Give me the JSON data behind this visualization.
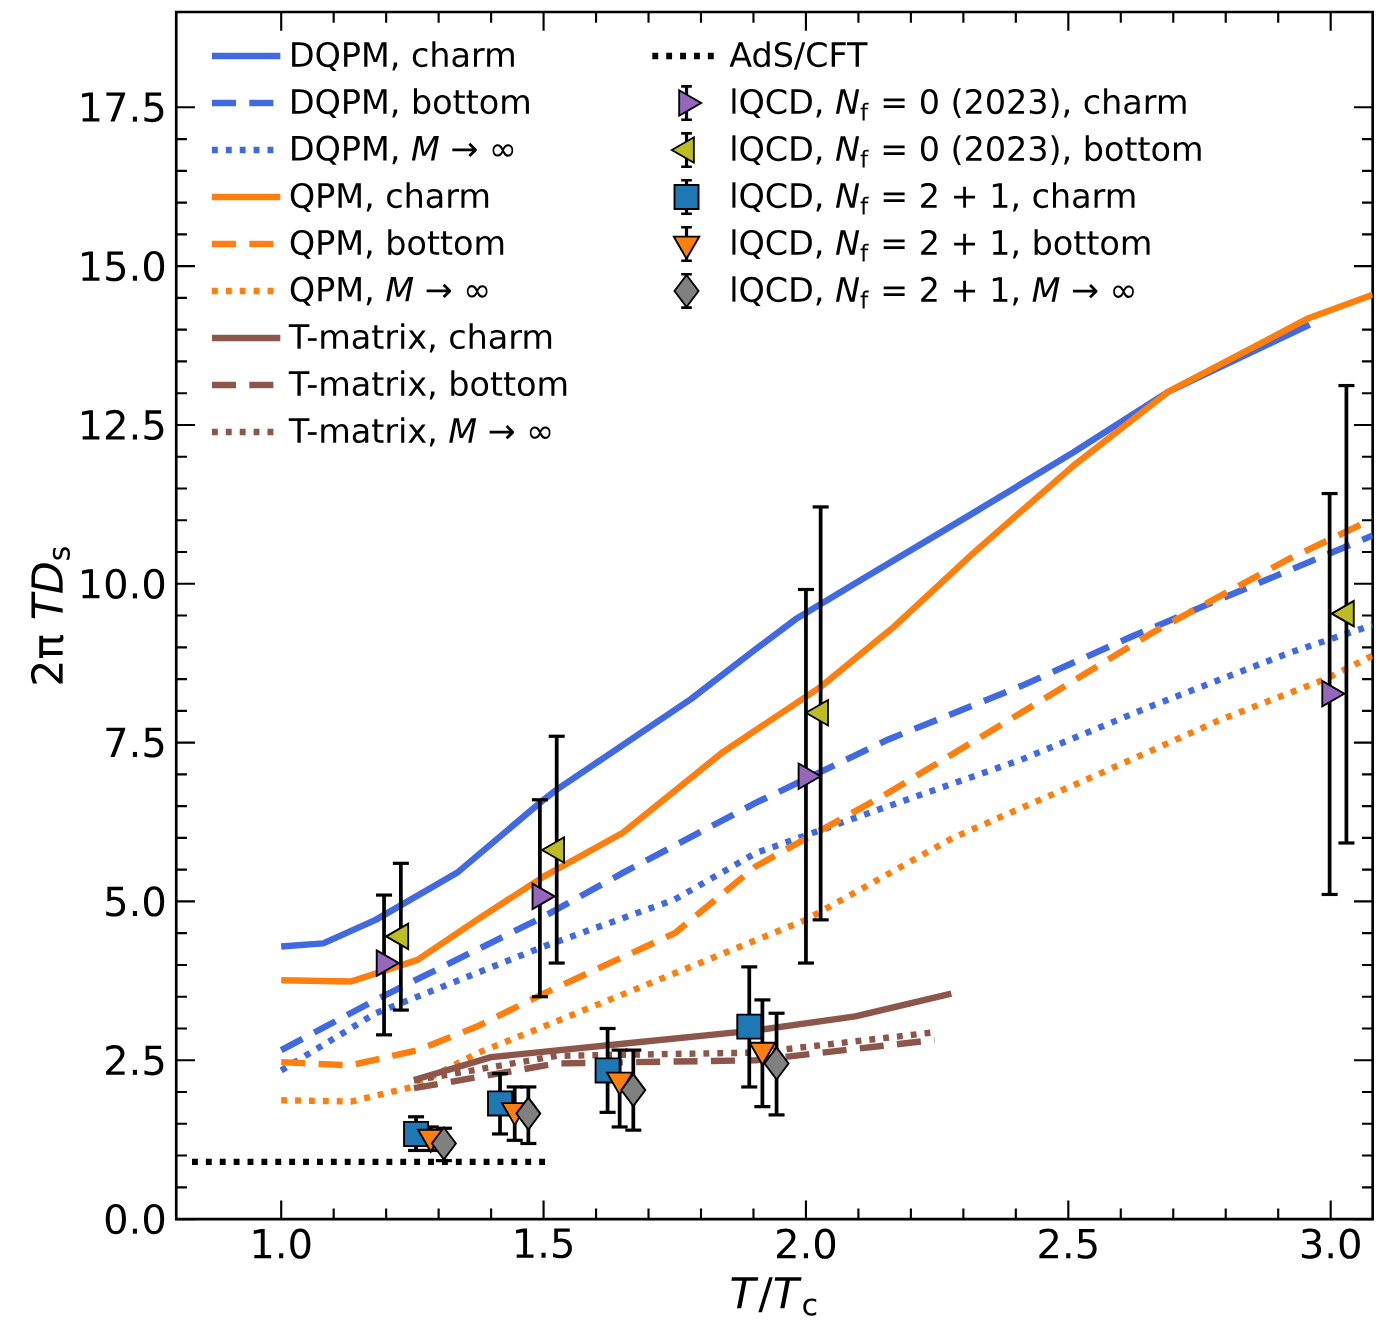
{
  "chart_data": {
    "type": "line",
    "xlabel": "*T*/*T*$_{c}$",
    "ylabel": "2π *TD*$_{s}$",
    "xlim": [
      0.8,
      3.08
    ],
    "ylim": [
      0,
      19
    ],
    "xticks": [
      {
        "value": 1.0,
        "label": "1.0"
      },
      {
        "value": 1.5,
        "label": "1.5"
      },
      {
        "value": 2.0,
        "label": "2.0"
      },
      {
        "value": 2.5,
        "label": "2.5"
      },
      {
        "value": 3.0,
        "label": "3.0"
      }
    ],
    "yticks": [
      {
        "value": 0,
        "label": "0.0"
      },
      {
        "value": 2.5,
        "label": "2.5"
      },
      {
        "value": 5.0,
        "label": "5.0"
      },
      {
        "value": 7.5,
        "label": "7.5"
      },
      {
        "value": 10.0,
        "label": "10.0"
      },
      {
        "value": 12.5,
        "label": "12.5"
      },
      {
        "value": 15.0,
        "label": "15.0"
      },
      {
        "value": 17.5,
        "label": "17.5"
      }
    ],
    "legend": "top left",
    "series": [
      {
        "name": "DQPM, charm",
        "color": "#4169e1",
        "line_style": "solid",
        "x": [
          1.0,
          1.08,
          1.18,
          1.335,
          1.5,
          1.525,
          1.78,
          1.904,
          1.98,
          2.107,
          2.32,
          2.51,
          2.69,
          2.96
        ],
        "values": [
          4.29,
          4.34,
          4.71,
          5.45,
          6.6,
          6.76,
          8.18,
          8.97,
          9.44,
          10.07,
          11.12,
          12.07,
          13.02,
          14.08
        ]
      },
      {
        "name": "DQPM, bottom",
        "color": "#4169e1",
        "line_style": "dashed",
        "x": [
          1.0,
          1.18,
          1.5,
          1.651,
          1.904,
          2.157,
          2.41,
          2.61,
          2.79,
          3.08
        ],
        "values": [
          2.66,
          3.45,
          4.76,
          5.45,
          6.55,
          7.55,
          8.39,
          9.13,
          9.76,
          10.76
        ]
      },
      {
        "name": "DQPM, *M* → ∞",
        "color": "#4169e1",
        "line_style": "dotted",
        "x": [
          1.0,
          1.18,
          1.5,
          1.75,
          1.904,
          2.157,
          2.41,
          2.66,
          2.92,
          3.08
        ],
        "values": [
          2.34,
          3.24,
          4.29,
          5.03,
          5.76,
          6.5,
          7.23,
          8.08,
          8.91,
          9.35
        ]
      },
      {
        "name": "QPM, charm",
        "color": "#ff7f0e",
        "line_style": "solid",
        "x": [
          1.0,
          1.133,
          1.26,
          1.373,
          1.5,
          1.651,
          1.84,
          2.03,
          2.17,
          2.32,
          2.51,
          2.69,
          2.955,
          3.08
        ],
        "values": [
          3.76,
          3.74,
          4.08,
          4.71,
          5.39,
          6.08,
          7.34,
          8.39,
          9.34,
          10.49,
          11.86,
          13.02,
          14.17,
          14.55
        ]
      },
      {
        "name": "QPM, bottom",
        "color": "#ff7f0e",
        "line_style": "dashed",
        "x": [
          1.0,
          1.133,
          1.26,
          1.373,
          1.5,
          1.75,
          1.904,
          2.157,
          2.41,
          2.66,
          2.92,
          3.08
        ],
        "values": [
          2.47,
          2.42,
          2.66,
          3.03,
          3.55,
          4.5,
          5.55,
          6.71,
          7.97,
          9.23,
          10.39,
          11.02
        ]
      },
      {
        "name": "QPM, *M* → ∞",
        "color": "#ff7f0e",
        "line_style": "dotted",
        "x": [
          1.0,
          1.133,
          1.25,
          1.373,
          1.5,
          1.75,
          2.0,
          2.28,
          2.535,
          2.79,
          2.99,
          3.08
        ],
        "values": [
          1.87,
          1.85,
          2.08,
          2.61,
          3.03,
          3.87,
          4.71,
          6.0,
          6.92,
          7.86,
          8.5,
          8.87
        ]
      },
      {
        "name": "T-matrix, charm",
        "color": "#8c564b",
        "line_style": "solid",
        "x": [
          1.253,
          1.4,
          1.651,
          1.904,
          2.094,
          2.277
        ],
        "values": [
          2.19,
          2.55,
          2.76,
          2.97,
          3.19,
          3.55
        ]
      },
      {
        "name": "T-matrix, bottom",
        "color": "#8c564b",
        "line_style": "dashed",
        "x": [
          1.253,
          1.525,
          1.904,
          2.245
        ],
        "values": [
          2.06,
          2.45,
          2.5,
          2.82
        ]
      },
      {
        "name": "T-matrix, *M* → ∞",
        "color": "#8c564b",
        "line_style": "dotted",
        "x": [
          1.253,
          1.525,
          1.904,
          2.245
        ],
        "values": [
          2.18,
          2.57,
          2.62,
          2.94
        ]
      },
      {
        "name": "AdS/CFT",
        "color": "#000000",
        "line_style": "dotted",
        "x": [
          0.83,
          1.51
        ],
        "values": [
          0.9,
          0.9
        ]
      },
      {
        "name": "lQCD, *N*$_{f}$ = 0 (2023), charm",
        "type": "scatter",
        "color": "#9467bd",
        "marker": "triangle",
        "x": [
          1.196,
          1.493,
          2.0,
          2.998
        ],
        "values": [
          4.03,
          5.08,
          6.97,
          8.27
        ],
        "errors": [
          [
            2.9,
            5.1
          ],
          [
            3.5,
            6.6
          ],
          [
            4.03,
            9.91
          ],
          [
            5.11,
            11.42
          ]
        ]
      },
      {
        "name": "lQCD, *N*$_{f}$ = 0 (2023), bottom",
        "type": "scatter",
        "color": "#bcbd22",
        "marker": "triangle",
        "x": [
          1.228,
          1.525,
          2.028,
          3.03
        ],
        "values": [
          4.45,
          5.81,
          7.97,
          9.53
        ],
        "errors": [
          [
            3.29,
            5.6
          ],
          [
            4.03,
            7.6
          ],
          [
            4.71,
            11.21
          ],
          [
            5.92,
            13.12
          ]
        ]
      },
      {
        "name": "lQCD, *N*$_{f}$ = 2 + 1, charm",
        "type": "scatter",
        "color": "#1f77b4",
        "marker": "square",
        "x": [
          1.257,
          1.417,
          1.622,
          1.892
        ],
        "values": [
          1.34,
          1.82,
          2.34,
          3.03
        ],
        "errors": [
          [
            1.08,
            1.61
          ],
          [
            1.34,
            2.29
          ],
          [
            1.68,
            3.0
          ],
          [
            2.08,
            3.97
          ]
        ]
      },
      {
        "name": "lQCD, *N*$_{f}$ = 2 + 1, bottom",
        "type": "scatter",
        "color": "#ff7f0e",
        "marker": "triangle",
        "x": [
          1.285,
          1.445,
          1.645,
          1.917
        ],
        "values": [
          1.29,
          1.71,
          2.19,
          2.66
        ],
        "errors": [
          [
            1.08,
            1.45
          ],
          [
            1.24,
            2.08
          ],
          [
            1.45,
            2.66
          ],
          [
            1.77,
            3.45
          ]
        ]
      },
      {
        "name": "lQCD, *N*$_{f}$ = 2 + 1, *M* → ∞",
        "type": "scatter",
        "color": "#808080",
        "marker": "diamond",
        "x": [
          1.31,
          1.471,
          1.671,
          1.944
        ],
        "values": [
          1.19,
          1.66,
          2.03,
          2.45
        ],
        "errors": [
          [
            0.92,
            1.43
          ],
          [
            1.19,
            2.08
          ],
          [
            1.4,
            2.66
          ],
          [
            1.64,
            3.24
          ]
        ]
      }
    ]
  }
}
